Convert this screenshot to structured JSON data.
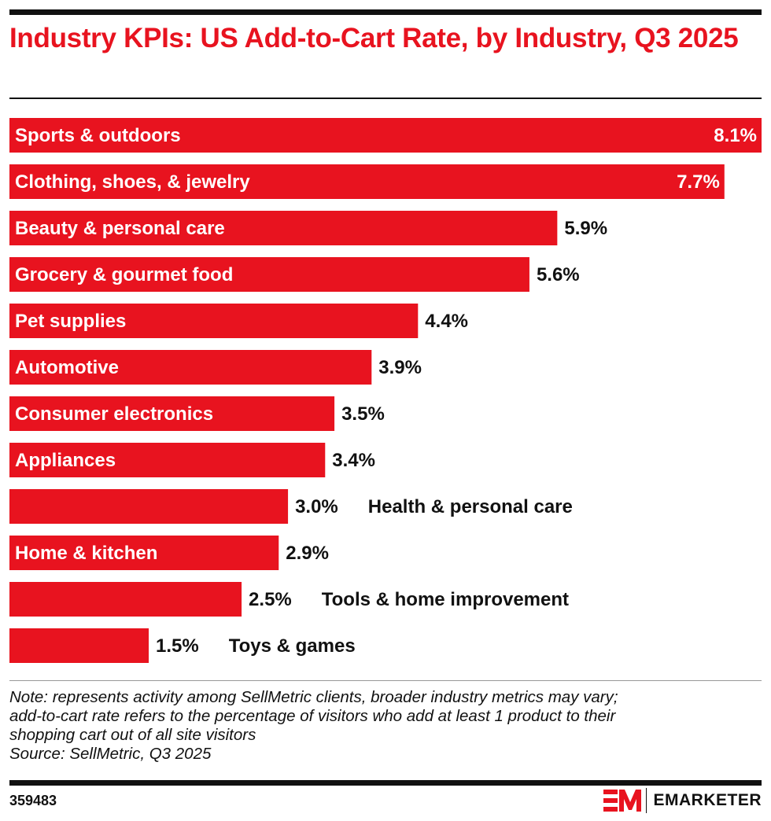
{
  "title": "Industry KPIs: US Add-to-Cart Rate, by Industry, Q3 2025",
  "note_lines": [
    "Note: represents activity among SellMetric clients, broader industry metrics may vary;",
    "add-to-cart rate refers to the percentage of visitors who add at least 1 product to their",
    "shopping cart out of all site visitors",
    "Source: SellMetric, Q3 2025"
  ],
  "chart_id": "359483",
  "brand": "EMARKETER",
  "colors": {
    "bar": "#e8131f",
    "title": "#e8131f",
    "text": "#111111"
  },
  "chart_data": {
    "type": "bar",
    "orientation": "horizontal",
    "title": "Industry KPIs: US Add-to-Cart Rate, by Industry, Q3 2025",
    "unit": "%",
    "xlim": [
      0,
      8.1
    ],
    "categories": [
      "Sports & outdoors",
      "Clothing, shoes, & jewelry",
      "Beauty & personal care",
      "Grocery & gourmet food",
      "Pet supplies",
      "Automotive",
      "Consumer electronics",
      "Appliances",
      "Health & personal care",
      "Home & kitchen",
      "Tools & home improvement",
      "Toys & games"
    ],
    "values": [
      8.1,
      7.7,
      5.9,
      5.6,
      4.4,
      3.9,
      3.5,
      3.4,
      3.0,
      2.9,
      2.5,
      1.5
    ],
    "value_labels": [
      "8.1%",
      "7.7%",
      "5.9%",
      "5.6%",
      "4.4%",
      "3.9%",
      "3.5%",
      "3.4%",
      "3.0%",
      "2.9%",
      "2.5%",
      "1.5%"
    ],
    "label_position": [
      "inside",
      "inside",
      "inside",
      "inside",
      "inside",
      "inside",
      "inside",
      "inside",
      "outside",
      "inside",
      "outside",
      "outside"
    ],
    "value_position": [
      "inside",
      "inside",
      "outside",
      "outside",
      "outside",
      "outside",
      "outside",
      "outside",
      "outside",
      "outside",
      "outside",
      "outside"
    ]
  }
}
